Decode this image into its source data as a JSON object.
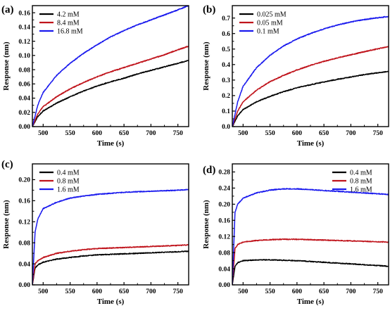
{
  "chart_data": [
    {
      "type": "line",
      "panel_label": "(a)",
      "xlabel": "Time (s)",
      "ylabel": "Response (nm)",
      "xlim": [
        480,
        770
      ],
      "ylim": [
        0,
        0.17
      ],
      "xticks": [
        500,
        550,
        600,
        650,
        700,
        750
      ],
      "yticks": [
        0.0,
        0.02,
        0.04,
        0.06,
        0.08,
        0.1,
        0.12,
        0.14,
        0.16
      ],
      "ytick_labels": [
        "0.00",
        "0.02",
        "0.04",
        "0.06",
        "0.08",
        "0.10",
        "0.12",
        "0.14",
        "0.16"
      ],
      "legend_position": "top-left",
      "series": [
        {
          "name": "4.2 mM",
          "color": "#000000",
          "x": [
            480,
            490,
            500,
            525,
            550,
            575,
            600,
            625,
            650,
            675,
            700,
            725,
            750,
            770
          ],
          "y": [
            0.0,
            0.014,
            0.022,
            0.033,
            0.042,
            0.05,
            0.057,
            0.063,
            0.068,
            0.074,
            0.079,
            0.084,
            0.089,
            0.093
          ]
        },
        {
          "name": "8.4 mM",
          "color": "#c0141c",
          "x": [
            480,
            490,
            500,
            525,
            550,
            575,
            600,
            625,
            650,
            675,
            700,
            725,
            750,
            770
          ],
          "y": [
            0.0,
            0.018,
            0.028,
            0.042,
            0.053,
            0.062,
            0.07,
            0.077,
            0.083,
            0.089,
            0.095,
            0.101,
            0.108,
            0.113
          ]
        },
        {
          "name": "16.8 mM",
          "color": "#1a1aee",
          "x": [
            480,
            490,
            500,
            525,
            550,
            575,
            600,
            625,
            650,
            675,
            700,
            725,
            750,
            770
          ],
          "y": [
            0.0,
            0.03,
            0.048,
            0.072,
            0.089,
            0.103,
            0.115,
            0.126,
            0.135,
            0.143,
            0.15,
            0.157,
            0.164,
            0.17
          ]
        }
      ]
    },
    {
      "type": "line",
      "panel_label": "(b)",
      "xlabel": "Time (s)",
      "ylabel": "Response (nm)",
      "xlim": [
        480,
        770
      ],
      "ylim": [
        0,
        0.78
      ],
      "xticks": [
        500,
        550,
        600,
        650,
        700,
        750
      ],
      "yticks": [
        0.0,
        0.1,
        0.2,
        0.3,
        0.4,
        0.5,
        0.6,
        0.7
      ],
      "ytick_labels": [
        "0.0",
        "0.1",
        "0.2",
        "0.3",
        "0.4",
        "0.5",
        "0.6",
        "0.7"
      ],
      "legend_position": "top-left",
      "series": [
        {
          "name": "0.025 mM",
          "color": "#000000",
          "x": [
            480,
            490,
            500,
            525,
            550,
            575,
            600,
            625,
            650,
            675,
            700,
            725,
            750,
            770
          ],
          "y": [
            0.0,
            0.07,
            0.11,
            0.16,
            0.195,
            0.225,
            0.25,
            0.27,
            0.288,
            0.305,
            0.32,
            0.335,
            0.347,
            0.355
          ]
        },
        {
          "name": "0.05 mM",
          "color": "#c0141c",
          "x": [
            480,
            490,
            500,
            525,
            550,
            575,
            600,
            625,
            650,
            675,
            700,
            725,
            750,
            770
          ],
          "y": [
            0.0,
            0.1,
            0.16,
            0.235,
            0.29,
            0.33,
            0.365,
            0.395,
            0.42,
            0.443,
            0.463,
            0.483,
            0.502,
            0.515
          ]
        },
        {
          "name": "0.1 mM",
          "color": "#1a1aee",
          "x": [
            480,
            490,
            500,
            525,
            550,
            575,
            600,
            625,
            650,
            675,
            700,
            725,
            750,
            770
          ],
          "y": [
            0.0,
            0.16,
            0.26,
            0.38,
            0.46,
            0.52,
            0.565,
            0.6,
            0.63,
            0.655,
            0.675,
            0.69,
            0.702,
            0.71
          ]
        }
      ]
    },
    {
      "type": "line",
      "panel_label": "(c)",
      "xlabel": "Time (s)",
      "ylabel": "Response (nm)",
      "xlim": [
        480,
        770
      ],
      "ylim": [
        0,
        0.23
      ],
      "xticks": [
        500,
        550,
        600,
        650,
        700,
        750
      ],
      "yticks": [
        0.0,
        0.04,
        0.08,
        0.12,
        0.16,
        0.2
      ],
      "ytick_labels": [
        "0.00",
        "0.04",
        "0.08",
        "0.12",
        "0.16",
        "0.20"
      ],
      "legend_position": "top-left",
      "series": [
        {
          "name": "0.4 mM",
          "color": "#000000",
          "x": [
            480,
            485,
            490,
            500,
            525,
            550,
            575,
            600,
            625,
            650,
            675,
            700,
            725,
            750,
            770
          ],
          "y": [
            0.0,
            0.032,
            0.038,
            0.043,
            0.049,
            0.052,
            0.055,
            0.057,
            0.058,
            0.059,
            0.06,
            0.061,
            0.062,
            0.063,
            0.064
          ]
        },
        {
          "name": "0.8 mM",
          "color": "#c0141c",
          "x": [
            480,
            485,
            490,
            500,
            525,
            550,
            575,
            600,
            625,
            650,
            675,
            700,
            725,
            750,
            770
          ],
          "y": [
            0.0,
            0.04,
            0.046,
            0.052,
            0.06,
            0.064,
            0.067,
            0.069,
            0.07,
            0.071,
            0.072,
            0.073,
            0.074,
            0.075,
            0.076
          ]
        },
        {
          "name": "1.6 mM",
          "color": "#1a1aee",
          "x": [
            480,
            485,
            490,
            500,
            525,
            550,
            575,
            600,
            625,
            650,
            675,
            700,
            725,
            750,
            770
          ],
          "y": [
            0.0,
            0.1,
            0.125,
            0.145,
            0.157,
            0.165,
            0.169,
            0.172,
            0.174,
            0.176,
            0.177,
            0.178,
            0.179,
            0.18,
            0.181
          ]
        }
      ]
    },
    {
      "type": "line",
      "panel_label": "(d)",
      "xlabel": "Time (s)",
      "ylabel": "Response (nm)",
      "xlim": [
        480,
        770
      ],
      "ylim": [
        0,
        0.3
      ],
      "xticks": [
        500,
        550,
        600,
        650,
        700,
        750
      ],
      "yticks": [
        0.0,
        0.04,
        0.08,
        0.12,
        0.16,
        0.2,
        0.24,
        0.28
      ],
      "ytick_labels": [
        "0.00",
        "0.04",
        "0.08",
        "0.12",
        "0.16",
        "0.20",
        "0.24",
        "0.28"
      ],
      "legend_position": "top-right",
      "series": [
        {
          "name": "0.4 mM",
          "color": "#000000",
          "x": [
            480,
            485,
            490,
            500,
            525,
            550,
            575,
            600,
            625,
            650,
            675,
            700,
            725,
            750,
            770
          ],
          "y": [
            0.0,
            0.045,
            0.055,
            0.06,
            0.062,
            0.062,
            0.061,
            0.06,
            0.058,
            0.056,
            0.054,
            0.052,
            0.05,
            0.048,
            0.046
          ]
        },
        {
          "name": "0.8 mM",
          "color": "#c0141c",
          "x": [
            480,
            485,
            490,
            500,
            525,
            550,
            575,
            600,
            625,
            650,
            675,
            700,
            725,
            750,
            770
          ],
          "y": [
            0.0,
            0.09,
            0.1,
            0.106,
            0.11,
            0.112,
            0.113,
            0.113,
            0.112,
            0.111,
            0.11,
            0.109,
            0.108,
            0.107,
            0.106
          ]
        },
        {
          "name": "1.6 mM",
          "color": "#1a1aee",
          "x": [
            480,
            485,
            490,
            500,
            525,
            550,
            575,
            600,
            625,
            650,
            675,
            700,
            725,
            750,
            770
          ],
          "y": [
            0.0,
            0.18,
            0.2,
            0.215,
            0.228,
            0.235,
            0.238,
            0.238,
            0.236,
            0.234,
            0.232,
            0.23,
            0.228,
            0.226,
            0.224
          ]
        }
      ]
    }
  ]
}
